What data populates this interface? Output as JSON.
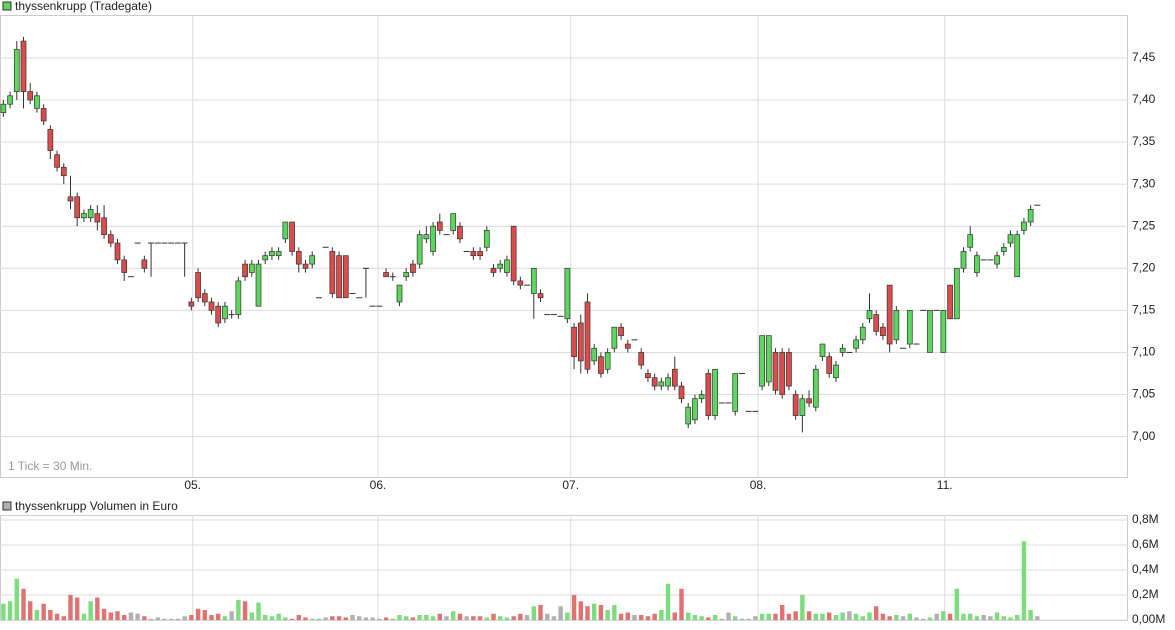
{
  "chart_data": [
    {
      "type": "candlestick",
      "title": "thyssenkrupp (Tradegate)",
      "annotation": "1 Tick = 30 Min.",
      "up_color": "#5cd65c",
      "down_color": "#dc4c4c",
      "grid": true,
      "xlim": [
        0,
        168
      ],
      "xticks": [
        {
          "value": 28.7,
          "label": "05."
        },
        {
          "value": 56.3,
          "label": "06."
        },
        {
          "value": 85,
          "label": "07."
        },
        {
          "value": 112.9,
          "label": "08."
        },
        {
          "value": 140.7,
          "label": "11."
        }
      ],
      "ylim": [
        6.952,
        7.501
      ],
      "yticks": [
        {
          "value": 7.0,
          "label": "7,00"
        },
        {
          "value": 7.05,
          "label": "7,05"
        },
        {
          "value": 7.1,
          "label": "7,10"
        },
        {
          "value": 7.15,
          "label": "7,15"
        },
        {
          "value": 7.2,
          "label": "7,20"
        },
        {
          "value": 7.25,
          "label": "7,25"
        },
        {
          "value": 7.3,
          "label": "7,30"
        },
        {
          "value": 7.35,
          "label": "7,35"
        },
        {
          "value": 7.4,
          "label": "7,40"
        },
        {
          "value": 7.45,
          "label": "7,45"
        }
      ],
      "ohlc": [
        [
          7.385,
          7.4,
          7.38,
          7.395
        ],
        [
          7.395,
          7.41,
          7.39,
          7.405
        ],
        [
          7.41,
          7.47,
          7.4,
          7.46
        ],
        [
          7.47,
          7.475,
          7.39,
          7.41
        ],
        [
          7.41,
          7.42,
          7.395,
          7.4
        ],
        [
          7.39,
          7.41,
          7.385,
          7.405
        ],
        [
          7.39,
          7.395,
          7.37,
          7.375
        ],
        [
          7.365,
          7.37,
          7.33,
          7.34
        ],
        [
          7.335,
          7.34,
          7.315,
          7.32
        ],
        [
          7.32,
          7.325,
          7.3,
          7.31
        ],
        [
          7.285,
          7.31,
          7.27,
          7.28
        ],
        [
          7.285,
          7.29,
          7.25,
          7.26
        ],
        [
          7.26,
          7.27,
          7.255,
          7.265
        ],
        [
          7.26,
          7.275,
          7.255,
          7.27
        ],
        [
          7.265,
          7.275,
          7.245,
          7.255
        ],
        [
          7.26,
          7.275,
          7.235,
          7.24
        ],
        [
          7.24,
          7.245,
          7.225,
          7.23
        ],
        [
          7.23,
          7.235,
          7.205,
          7.21
        ],
        [
          7.21,
          7.215,
          7.185,
          7.195
        ],
        [
          7.19,
          7.19,
          7.19,
          7.19
        ],
        [
          7.23,
          7.23,
          7.23,
          7.23
        ],
        [
          7.21,
          7.215,
          7.195,
          7.2
        ],
        [
          7.23,
          7.23,
          7.19,
          7.23
        ],
        [
          7.23,
          7.23,
          7.23,
          7.23
        ],
        [
          7.23,
          7.23,
          7.23,
          7.23
        ],
        [
          7.23,
          7.23,
          7.23,
          7.23
        ],
        [
          7.23,
          7.23,
          7.23,
          7.23
        ],
        [
          7.23,
          7.23,
          7.19,
          7.23
        ],
        [
          7.16,
          7.165,
          7.15,
          7.155
        ],
        [
          7.195,
          7.2,
          7.16,
          7.165
        ],
        [
          7.17,
          7.175,
          7.155,
          7.16
        ],
        [
          7.16,
          7.165,
          7.145,
          7.15
        ],
        [
          7.155,
          7.16,
          7.13,
          7.135
        ],
        [
          7.14,
          7.16,
          7.135,
          7.155
        ],
        [
          7.145,
          7.15,
          7.14,
          7.145
        ],
        [
          7.145,
          7.19,
          7.14,
          7.185
        ],
        [
          7.205,
          7.21,
          7.185,
          7.19
        ],
        [
          7.195,
          7.21,
          7.19,
          7.205
        ],
        [
          7.155,
          7.21,
          7.155,
          7.205
        ],
        [
          7.21,
          7.22,
          7.205,
          7.215
        ],
        [
          7.215,
          7.225,
          7.21,
          7.22
        ],
        [
          7.215,
          7.225,
          7.21,
          7.22
        ],
        [
          7.235,
          7.255,
          7.23,
          7.255
        ],
        [
          7.255,
          7.255,
          7.215,
          7.22
        ],
        [
          7.22,
          7.225,
          7.195,
          7.205
        ],
        [
          7.205,
          7.21,
          7.195,
          7.2
        ],
        [
          7.205,
          7.22,
          7.2,
          7.215
        ],
        [
          7.165,
          7.165,
          7.165,
          7.165
        ],
        [
          7.225,
          7.225,
          7.225,
          7.225
        ],
        [
          7.22,
          7.225,
          7.165,
          7.17
        ],
        [
          7.215,
          7.22,
          7.165,
          7.165
        ],
        [
          7.215,
          7.215,
          7.165,
          7.165
        ],
        [
          7.17,
          7.17,
          7.17,
          7.17
        ],
        [
          7.165,
          7.165,
          7.165,
          7.165
        ],
        [
          7.2,
          7.2,
          7.165,
          7.2
        ],
        [
          7.155,
          7.155,
          7.155,
          7.155
        ],
        [
          7.155,
          7.155,
          7.155,
          7.155
        ],
        [
          7.195,
          7.2,
          7.19,
          7.19
        ],
        [
          7.19,
          7.195,
          7.185,
          7.19
        ],
        [
          7.16,
          7.18,
          7.155,
          7.18
        ],
        [
          7.19,
          7.2,
          7.185,
          7.195
        ],
        [
          7.205,
          7.21,
          7.19,
          7.195
        ],
        [
          7.205,
          7.245,
          7.2,
          7.24
        ],
        [
          7.235,
          7.25,
          7.23,
          7.24
        ],
        [
          7.22,
          7.255,
          7.215,
          7.25
        ],
        [
          7.255,
          7.265,
          7.24,
          7.245
        ],
        [
          7.24,
          7.24,
          7.24,
          7.24
        ],
        [
          7.245,
          7.265,
          7.24,
          7.265
        ],
        [
          7.25,
          7.255,
          7.23,
          7.235
        ],
        [
          7.22,
          7.22,
          7.22,
          7.22
        ],
        [
          7.22,
          7.225,
          7.21,
          7.215
        ],
        [
          7.22,
          7.225,
          7.21,
          7.215
        ],
        [
          7.225,
          7.25,
          7.22,
          7.245
        ],
        [
          7.2,
          7.205,
          7.19,
          7.195
        ],
        [
          7.2,
          7.21,
          7.195,
          7.205
        ],
        [
          7.195,
          7.215,
          7.19,
          7.21
        ],
        [
          7.25,
          7.25,
          7.18,
          7.185
        ],
        [
          7.185,
          7.19,
          7.175,
          7.18
        ],
        [
          7.18,
          7.18,
          7.18,
          7.18
        ],
        [
          7.17,
          7.2,
          7.14,
          7.2
        ],
        [
          7.17,
          7.175,
          7.16,
          7.165
        ],
        [
          7.145,
          7.145,
          7.145,
          7.145
        ],
        [
          7.145,
          7.145,
          7.145,
          7.145
        ],
        [
          7.143,
          7.143,
          7.143,
          7.143
        ],
        [
          7.14,
          7.2,
          7.135,
          7.2
        ],
        [
          7.13,
          7.135,
          7.08,
          7.095
        ],
        [
          7.135,
          7.145,
          7.075,
          7.09
        ],
        [
          7.16,
          7.17,
          7.075,
          7.08
        ],
        [
          7.09,
          7.11,
          7.085,
          7.105
        ],
        [
          7.095,
          7.1,
          7.07,
          7.075
        ],
        [
          7.08,
          7.105,
          7.075,
          7.1
        ],
        [
          7.105,
          7.13,
          7.1,
          7.13
        ],
        [
          7.13,
          7.135,
          7.115,
          7.12
        ],
        [
          7.11,
          7.115,
          7.1,
          7.105
        ],
        [
          7.115,
          7.115,
          7.115,
          7.115
        ],
        [
          7.1,
          7.105,
          7.08,
          7.085
        ],
        [
          7.075,
          7.08,
          7.065,
          7.07
        ],
        [
          7.07,
          7.075,
          7.055,
          7.06
        ],
        [
          7.06,
          7.07,
          7.055,
          7.065
        ],
        [
          7.06,
          7.075,
          7.055,
          7.07
        ],
        [
          7.08,
          7.095,
          7.055,
          7.06
        ],
        [
          7.06,
          7.065,
          7.04,
          7.045
        ],
        [
          7.015,
          7.04,
          7.01,
          7.035
        ],
        [
          7.02,
          7.05,
          7.015,
          7.045
        ],
        [
          7.045,
          7.055,
          7.04,
          7.05
        ],
        [
          7.075,
          7.08,
          7.02,
          7.025
        ],
        [
          7.025,
          7.08,
          7.02,
          7.08
        ],
        [
          7.04,
          7.04,
          7.04,
          7.04
        ],
        [
          7.04,
          7.04,
          7.04,
          7.04
        ],
        [
          7.03,
          7.075,
          7.025,
          7.075
        ],
        [
          7.075,
          7.075,
          7.075,
          7.075
        ],
        [
          7.03,
          7.03,
          7.03,
          7.03
        ],
        [
          7.03,
          7.03,
          7.03,
          7.03
        ],
        [
          7.06,
          7.12,
          7.055,
          7.12
        ],
        [
          7.065,
          7.12,
          7.06,
          7.12
        ],
        [
          7.1,
          7.105,
          7.05,
          7.055
        ],
        [
          7.1,
          7.105,
          7.045,
          7.05
        ],
        [
          7.1,
          7.105,
          7.055,
          7.06
        ],
        [
          7.05,
          7.055,
          7.02,
          7.025
        ],
        [
          7.025,
          7.05,
          7.005,
          7.045
        ],
        [
          7.045,
          7.055,
          7.035,
          7.04
        ],
        [
          7.035,
          7.085,
          7.03,
          7.08
        ],
        [
          7.095,
          7.11,
          7.09,
          7.11
        ],
        [
          7.095,
          7.1,
          7.07,
          7.075
        ],
        [
          7.07,
          7.09,
          7.065,
          7.085
        ],
        [
          7.1,
          7.11,
          7.095,
          7.105
        ],
        [
          7.1,
          7.1,
          7.1,
          7.1
        ],
        [
          7.105,
          7.12,
          7.1,
          7.115
        ],
        [
          7.115,
          7.135,
          7.11,
          7.13
        ],
        [
          7.14,
          7.17,
          7.135,
          7.15
        ],
        [
          7.145,
          7.15,
          7.12,
          7.125
        ],
        [
          7.13,
          7.135,
          7.115,
          7.12
        ],
        [
          7.18,
          7.18,
          7.1,
          7.11
        ],
        [
          7.115,
          7.155,
          7.11,
          7.15
        ],
        [
          7.105,
          7.105,
          7.105,
          7.105
        ],
        [
          7.11,
          7.15,
          7.105,
          7.15
        ],
        [
          7.11,
          7.11,
          7.11,
          7.11
        ],
        [
          7.15,
          7.15,
          7.15,
          7.15
        ],
        [
          7.1,
          7.15,
          7.1,
          7.15
        ],
        [
          7.15,
          7.15,
          7.15,
          7.15
        ],
        [
          7.1,
          7.15,
          7.1,
          7.15
        ],
        [
          7.18,
          7.18,
          7.14,
          7.14
        ],
        [
          7.14,
          7.2,
          7.14,
          7.2
        ],
        [
          7.2,
          7.225,
          7.195,
          7.22
        ],
        [
          7.225,
          7.25,
          7.22,
          7.24
        ],
        [
          7.195,
          7.22,
          7.19,
          7.215
        ],
        [
          7.21,
          7.21,
          7.21,
          7.21
        ],
        [
          7.21,
          7.21,
          7.21,
          7.21
        ],
        [
          7.205,
          7.22,
          7.2,
          7.215
        ],
        [
          7.22,
          7.23,
          7.215,
          7.225
        ],
        [
          7.23,
          7.245,
          7.225,
          7.24
        ],
        [
          7.19,
          7.245,
          7.19,
          7.24
        ],
        [
          7.245,
          7.26,
          7.24,
          7.255
        ],
        [
          7.255,
          7.275,
          7.25,
          7.27
        ],
        [
          7.275,
          7.275,
          7.275,
          7.275
        ]
      ]
    },
    {
      "type": "bar",
      "title": "thyssenkrupp Volumen in Euro",
      "up_color": "#7ddc7d",
      "down_color": "#e07272",
      "flat_color": "#b0b0b0",
      "ylim": [
        0,
        0.84
      ],
      "yticks": [
        {
          "value": 0,
          "label": "0,00M"
        },
        {
          "value": 0.2,
          "label": "0,2M"
        },
        {
          "value": 0.4,
          "label": "0,4M"
        },
        {
          "value": 0.6,
          "label": "0,6M"
        },
        {
          "value": 0.8,
          "label": "0,8M"
        }
      ],
      "values": [
        0.13,
        0.15,
        0.33,
        0.25,
        0.15,
        0.08,
        0.13,
        0.08,
        0.05,
        0.03,
        0.2,
        0.18,
        0.05,
        0.15,
        0.18,
        0.09,
        0.06,
        0.07,
        0.04,
        0.06,
        0.05,
        0.03,
        0.01,
        0.02,
        0.01,
        0.01,
        0.01,
        0.03,
        0.04,
        0.09,
        0.08,
        0.04,
        0.05,
        0.03,
        0.07,
        0.16,
        0.15,
        0.06,
        0.14,
        0.04,
        0.03,
        0.05,
        0.02,
        0.01,
        0.04,
        0.02,
        0.01,
        0.01,
        0.02,
        0.03,
        0.03,
        0.02,
        0.04,
        0.03,
        0.02,
        0.02,
        0.01,
        0.02,
        0.01,
        0.04,
        0.03,
        0.02,
        0.04,
        0.04,
        0.03,
        0.05,
        0.03,
        0.07,
        0.05,
        0.03,
        0.03,
        0.03,
        0.02,
        0.05,
        0.03,
        0.02,
        0.03,
        0.05,
        0.04,
        0.11,
        0.12,
        0.05,
        0.03,
        0.11,
        0.06,
        0.2,
        0.15,
        0.11,
        0.13,
        0.12,
        0.08,
        0.12,
        0.05,
        0.06,
        0.04,
        0.04,
        0.03,
        0.05,
        0.08,
        0.29,
        0.06,
        0.25,
        0.06,
        0.04,
        0.03,
        0.02,
        0.04,
        0.01,
        0.06,
        0.03,
        0.01,
        0.01,
        0.03,
        0.05,
        0.05,
        0.05,
        0.12,
        0.05,
        0.07,
        0.2,
        0.07,
        0.05,
        0.05,
        0.06,
        0.04,
        0.06,
        0.07,
        0.05,
        0.03,
        0.06,
        0.11,
        0.05,
        0.03,
        0.04,
        0.03,
        0.05,
        0.02,
        0.01,
        0.02,
        0.05,
        0.07,
        0.05,
        0.25,
        0.05,
        0.05,
        0.03,
        0.04,
        0.03,
        0.06,
        0.03,
        0.02,
        0.04,
        0.63,
        0.08,
        0.03
      ]
    }
  ]
}
